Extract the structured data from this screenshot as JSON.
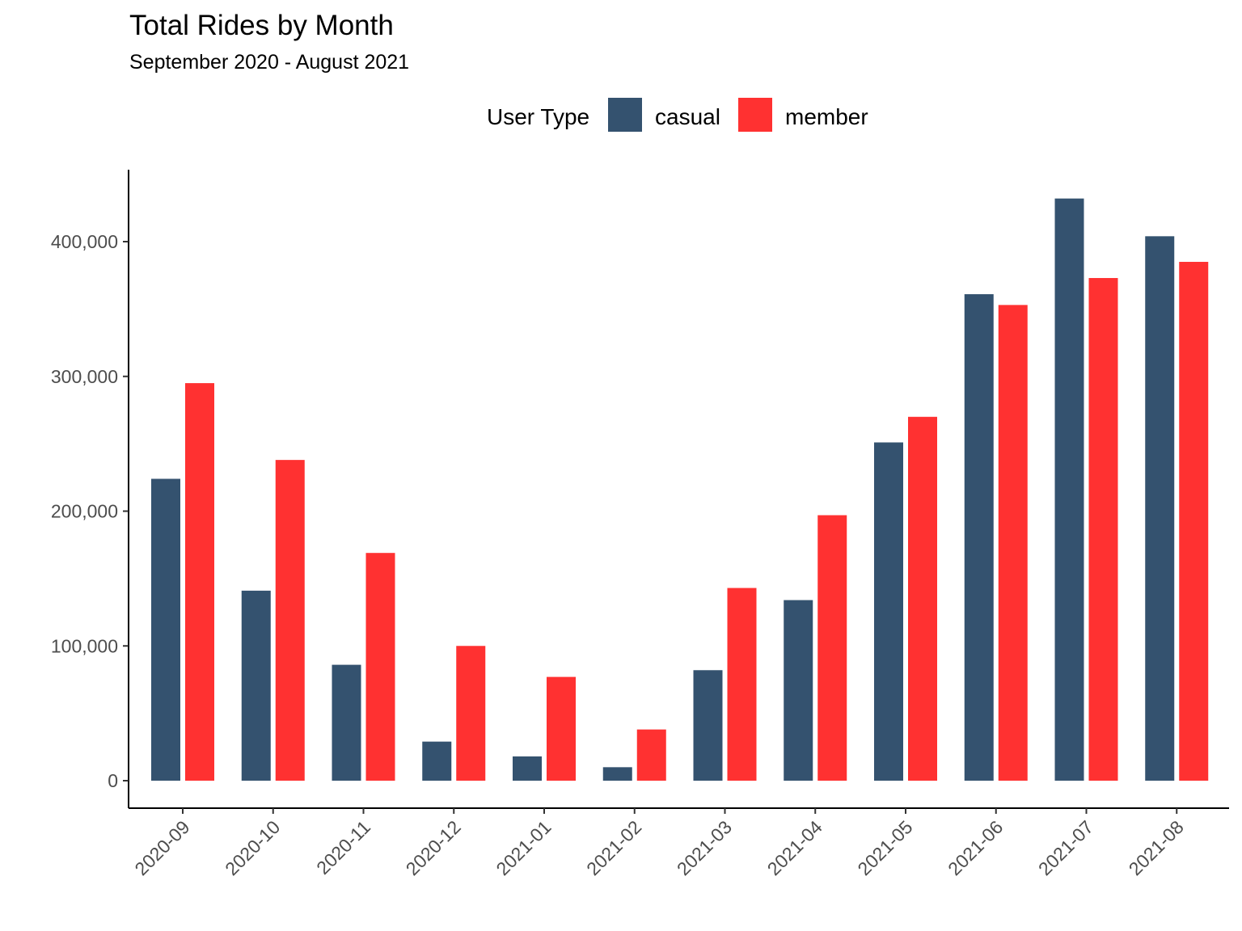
{
  "chart_data": {
    "type": "bar",
    "title": "Total Rides by Month",
    "subtitle": "September 2020 - August 2021",
    "xlabel": "",
    "ylabel": "",
    "ylim": [
      0,
      450000
    ],
    "y_ticks": [
      0,
      100000,
      200000,
      300000,
      400000
    ],
    "y_tick_labels": [
      "0",
      "100,000",
      "200,000",
      "300,000",
      "400,000"
    ],
    "categories": [
      "2020-09",
      "2020-10",
      "2020-11",
      "2020-12",
      "2021-01",
      "2021-02",
      "2021-03",
      "2021-04",
      "2021-05",
      "2021-06",
      "2021-07",
      "2021-08"
    ],
    "legend": {
      "title": "User Type",
      "placement": "top"
    },
    "grid": false,
    "series": [
      {
        "name": "casual",
        "color": "#34526f",
        "values": [
          224000,
          141000,
          86000,
          29000,
          18000,
          10000,
          82000,
          134000,
          251000,
          361000,
          432000,
          404000
        ]
      },
      {
        "name": "member",
        "color": "#ff3131",
        "values": [
          295000,
          238000,
          169000,
          100000,
          77000,
          38000,
          143000,
          197000,
          270000,
          353000,
          373000,
          385000
        ]
      }
    ]
  }
}
